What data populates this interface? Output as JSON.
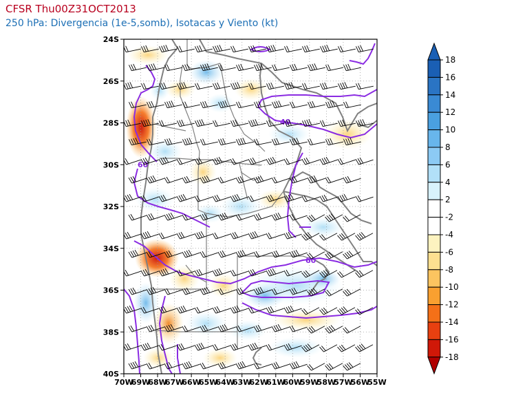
{
  "header": {
    "title": "CFSR Thu00Z31OCT2013",
    "subtitle": "250 hPa: Divergencia (1e-5,somb), Isotacas y Viento (kt)"
  },
  "axes": {
    "lat_labels": [
      "24S",
      "26S",
      "28S",
      "30S",
      "32S",
      "34S",
      "36S",
      "38S",
      "40S"
    ],
    "lon_labels": [
      "70W",
      "69W",
      "68W",
      "67W",
      "66W",
      "65W",
      "64W",
      "63W",
      "62W",
      "61W",
      "60W",
      "59W",
      "58W",
      "57W",
      "56W",
      "55W"
    ]
  },
  "contours": {
    "isotach_color": "#8a2be2",
    "labels": [
      "40",
      "60",
      "60"
    ]
  },
  "colorbar": {
    "labels": [
      "18",
      "16",
      "14",
      "12",
      "10",
      "8",
      "6",
      "4",
      "2",
      "-2",
      "-4",
      "-6",
      "-8",
      "-10",
      "-12",
      "-14",
      "-16",
      "-18"
    ],
    "colors": [
      "#1a5fb4",
      "#2a74c4",
      "#3a8ad4",
      "#4aa0e0",
      "#68b6ec",
      "#8ccaf4",
      "#b2e0f8",
      "#d8f2fc",
      "#ffffff",
      "#ffffff",
      "#fdf3c0",
      "#fde090",
      "#fcc460",
      "#f9a030",
      "#f47018",
      "#e84010",
      "#d01808",
      "#b00000"
    ]
  },
  "colors": {
    "positive_div": "#7cc3ee",
    "negative_div": "#f9c046",
    "strong_negative": "#d9341c",
    "boundaries": "#808080",
    "barbs": "#000000"
  }
}
